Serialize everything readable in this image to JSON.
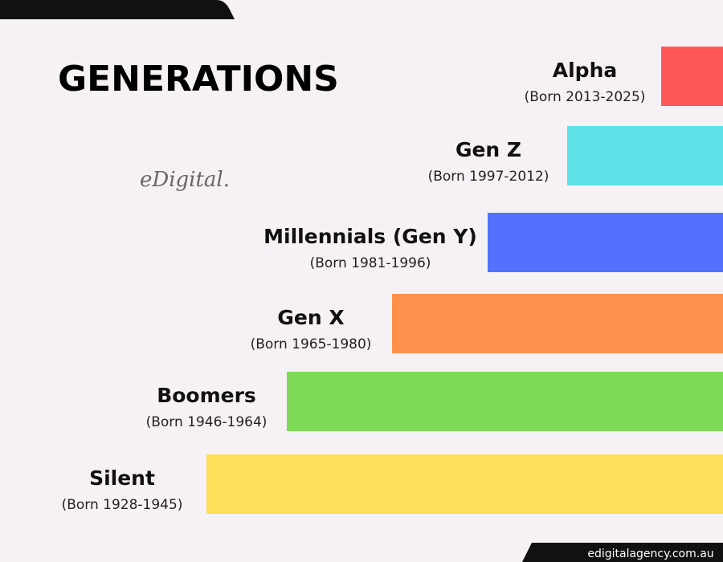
{
  "title": "GENERATIONS",
  "logo": "eDigital.",
  "footer": "edigitalagency.com.au",
  "generations": [
    {
      "name": "Alpha",
      "born": "(Born 2013-2025)",
      "color": "#ff5757"
    },
    {
      "name": "Gen Z",
      "born": "(Born 1997-2012)",
      "color": "#5ce1e6"
    },
    {
      "name": "Millennials (Gen Y)",
      "born": "(Born 1981-1996)",
      "color": "#5271ff"
    },
    {
      "name": "Gen X",
      "born": "(Born 1965-1980)",
      "color": "#ff914d"
    },
    {
      "name": "Boomers",
      "born": "(Born 1946-1964)",
      "color": "#7ed957"
    },
    {
      "name": "Silent",
      "born": "(Born 1928-1945)",
      "color": "#ffde59"
    }
  ]
}
